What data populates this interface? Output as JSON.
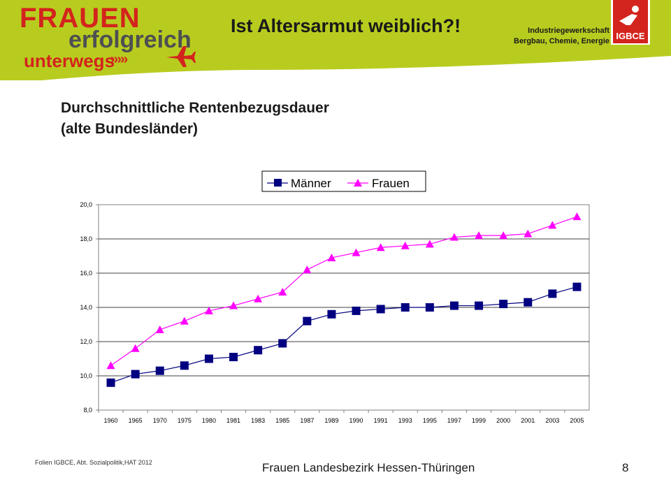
{
  "header": {
    "logo_line1": "FRAUEN",
    "logo_line2": "erfolgreich",
    "logo_line3": "unterwegs",
    "logo_arrows": "›››››",
    "title": "Ist Altersarmut weiblich?!",
    "union_line1": "Industriegewerkschaft",
    "union_line2": "Bergbau, Chemie, Energie",
    "union_logo_text": "IGBCE"
  },
  "slide": {
    "title_line1": "Durchschnittliche Rentenbezugsdauer",
    "title_line2": "(alte Bundesländer)"
  },
  "footer": {
    "left": "Folien IGBCE, Abt. Sozialpolitik,HAT 2012",
    "center": "Frauen Landesbezirk Hessen-Thüringen",
    "page": "8"
  },
  "colors": {
    "banner": "#b8cc1f",
    "brand_red": "#d3241d",
    "men": "#000080",
    "women": "#ff00ff"
  },
  "chart_data": {
    "type": "line",
    "title": "",
    "xlabel": "",
    "ylabel": "",
    "ylim": [
      8,
      20
    ],
    "yticks": [
      "8,0",
      "10,0",
      "12,0",
      "14,0",
      "16,0",
      "18,0",
      "20,0"
    ],
    "grid": true,
    "legend_position": "top",
    "categories": [
      "1960",
      "1965",
      "1970",
      "1975",
      "1980",
      "1981",
      "1983",
      "1985",
      "1987",
      "1989",
      "1990",
      "1991",
      "1993",
      "1995",
      "1997",
      "1999",
      "2000",
      "2001",
      "2003",
      "2005"
    ],
    "series": [
      {
        "name": "Männer",
        "marker": "square",
        "color": "#000080",
        "values": [
          9.6,
          10.1,
          10.3,
          10.6,
          11.0,
          11.1,
          11.5,
          11.9,
          13.2,
          13.6,
          13.8,
          13.9,
          14.0,
          14.0,
          14.1,
          14.1,
          14.2,
          14.3,
          14.8,
          15.2
        ]
      },
      {
        "name": "Frauen",
        "marker": "triangle",
        "color": "#ff00ff",
        "values": [
          10.6,
          11.6,
          12.7,
          13.2,
          13.8,
          14.1,
          14.5,
          14.9,
          16.2,
          16.9,
          17.2,
          17.5,
          17.6,
          17.7,
          18.1,
          18.2,
          18.2,
          18.3,
          18.8,
          19.3
        ]
      }
    ]
  }
}
